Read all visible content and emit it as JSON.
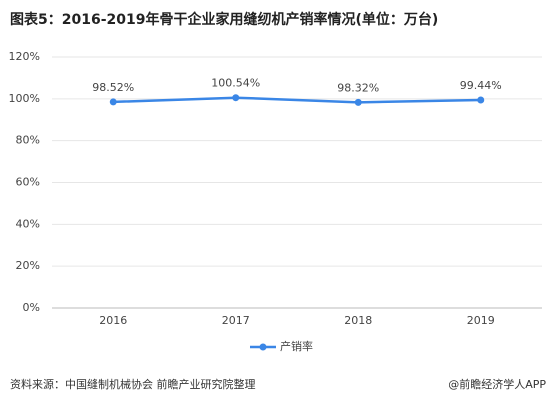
{
  "chart_data": {
    "type": "line",
    "title": "图表5：2016-2019年骨干企业家用缝纫机产销率情况(单位：万台)",
    "categories": [
      "2016",
      "2017",
      "2018",
      "2019"
    ],
    "series": [
      {
        "name": "产销率",
        "color": "#3a86e6",
        "values": [
          98.52,
          100.54,
          98.32,
          99.44
        ],
        "value_labels": [
          "98.52%",
          "100.54%",
          "98.32%",
          "99.44%"
        ]
      }
    ],
    "ylim": [
      0,
      120
    ],
    "yticks": [
      {
        "value": 0,
        "label": "0%"
      },
      {
        "value": 20,
        "label": "20%"
      },
      {
        "value": 40,
        "label": "40%"
      },
      {
        "value": 60,
        "label": "60%"
      },
      {
        "value": 80,
        "label": "80%"
      },
      {
        "value": 100,
        "label": "100%"
      },
      {
        "value": 120,
        "label": "120%"
      }
    ],
    "grid": true,
    "legend": "bottom",
    "source": "资料来源：中国缝制机械协会   前瞻产业研究院整理",
    "credit": "@前瞻经济学人APP"
  }
}
